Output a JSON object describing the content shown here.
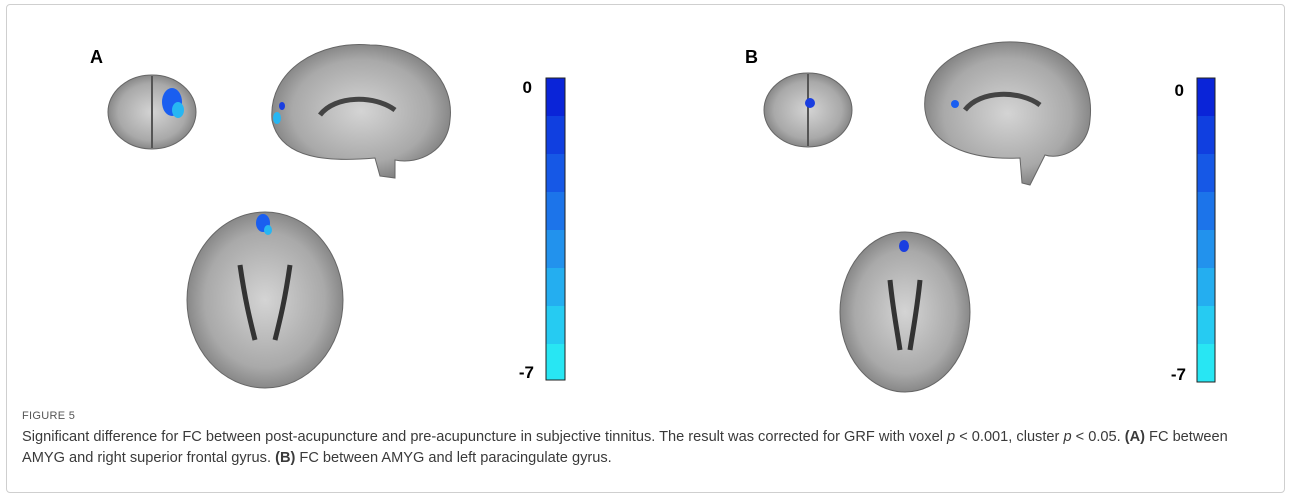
{
  "panels": [
    {
      "label": "A",
      "colorbar": {
        "top": "0",
        "bottom": "-7"
      }
    },
    {
      "label": "B",
      "colorbar": {
        "top": "0",
        "bottom": "-7"
      }
    }
  ],
  "caption": {
    "figure": "FIGURE 5",
    "segments": [
      "Significant difference for FC between post-acupuncture and pre-acupuncture in subjective tinnitus. The result was corrected for GRF with voxel ",
      "p",
      " < 0.001, cluster ",
      "p",
      " < 0.05. ",
      "(A)",
      " FC between AMYG and right superior frontal gyrus. ",
      "(B)",
      " FC between AMYG and left paracingulate gyrus."
    ]
  }
}
